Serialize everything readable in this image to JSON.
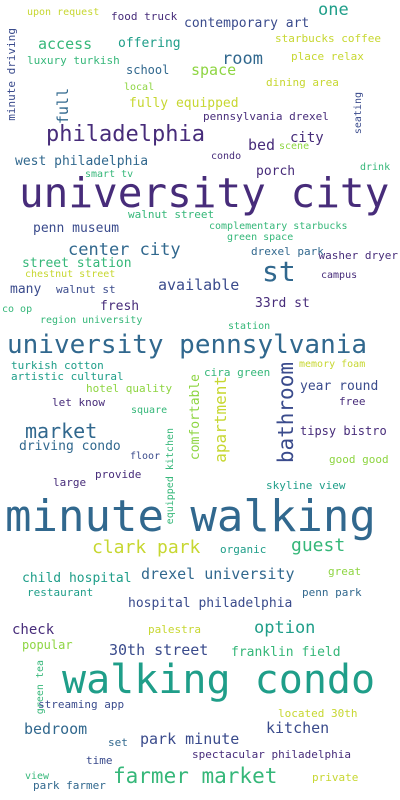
{
  "palette": {
    "background": "#ffffff",
    "purple": "#472c7a",
    "navy": "#3a4b8c",
    "blue": "#31688e",
    "teal": "#1f9e89",
    "green": "#35b779",
    "lime": "#8ed542",
    "yellow": "#c7d731"
  },
  "words": [
    "upon request",
    "food truck",
    "one",
    "minute driving",
    "contemporary art",
    "starbucks coffee",
    "access",
    "offering",
    "luxury turkish",
    "room",
    "place relax",
    "school",
    "space",
    "local",
    "dining area",
    "full",
    "fully equipped",
    "seating",
    "pennsylvania drexel",
    "philadelphia",
    "city",
    "bed",
    "scene",
    "condo",
    "west philadelphia",
    "smart tv",
    "porch",
    "drink",
    "university city",
    "walnut street",
    "penn museum",
    "complementary starbucks",
    "green space",
    "center city",
    "drexel park",
    "st",
    "street station",
    "washer dryer",
    "chestnut street",
    "campus",
    "many",
    "walnut st",
    "available",
    "fresh",
    "33rd st",
    "co op",
    "region university",
    "station",
    "university pennsylvania",
    "turkish cotton",
    "memory foam",
    "artistic cultural",
    "cira green",
    "bathroom",
    "year round",
    "hotel quality",
    "let know",
    "free",
    "square",
    "comfortable",
    "market",
    "tipsy bistro",
    "driving condo",
    "apartment",
    "floor",
    "good good",
    "provide",
    "equipped kitchen",
    "large",
    "skyline view",
    "minute walking",
    "clark park",
    "guest",
    "organic",
    "great",
    "child hospital",
    "drexel university",
    "restaurant",
    "penn park",
    "hospital philadelphia",
    "check",
    "option",
    "palestra",
    "popular",
    "30th street",
    "franklin field",
    "green tea",
    "walking condo",
    "streaming app",
    "located 30th",
    "bedroom",
    "park minute",
    "kitchen",
    "set",
    "time",
    "spectacular philadelphia",
    "view",
    "park farmer",
    "farmer market",
    "private"
  ]
}
